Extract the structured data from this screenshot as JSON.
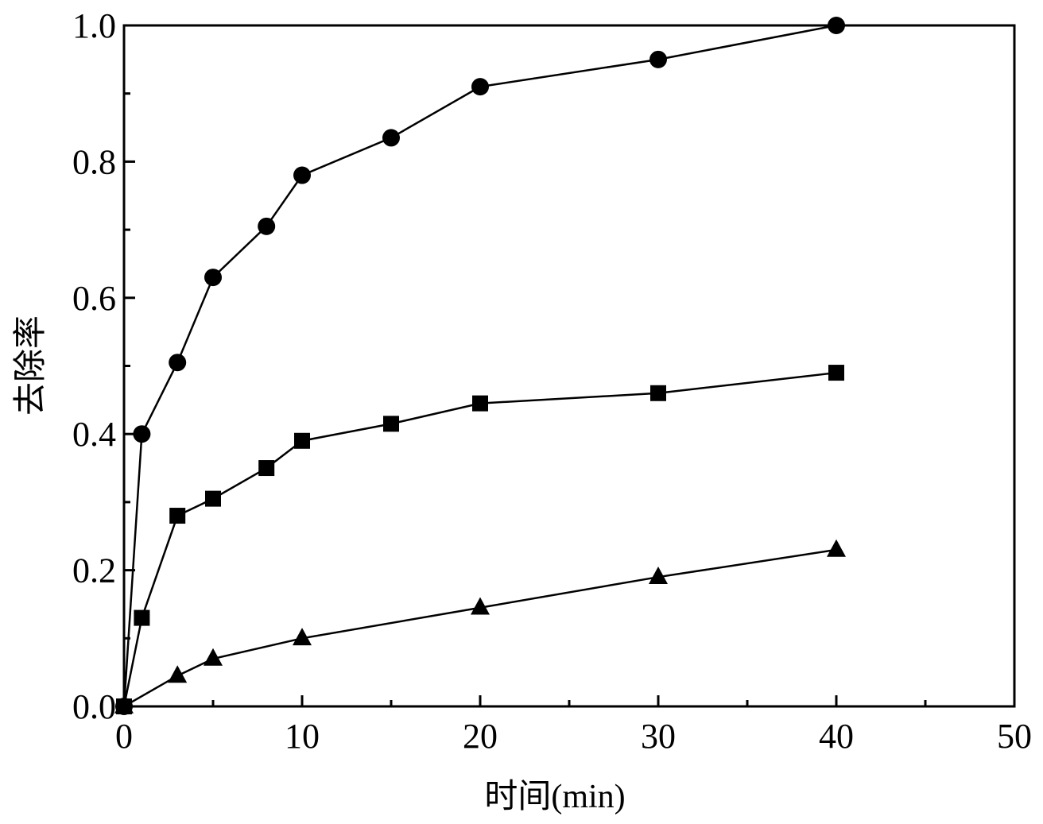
{
  "chart_data": {
    "type": "line",
    "xlabel": "时间(min)",
    "ylabel": "去除率",
    "xlim": [
      0,
      50
    ],
    "ylim": [
      0,
      1.0
    ],
    "x_ticks": [
      "0",
      "10",
      "20",
      "30",
      "40",
      "50"
    ],
    "y_ticks": [
      "0.0",
      "0.2",
      "0.4",
      "0.6",
      "0.8",
      "1.0"
    ],
    "grid": false,
    "series": [
      {
        "marker": "circle",
        "x": [
          0,
          1,
          3,
          5,
          8,
          10,
          15,
          20,
          30,
          40
        ],
        "y": [
          0.0,
          0.4,
          0.505,
          0.63,
          0.705,
          0.78,
          0.835,
          0.91,
          0.95,
          1.0
        ]
      },
      {
        "marker": "square",
        "x": [
          0,
          1,
          3,
          5,
          8,
          10,
          15,
          20,
          30,
          40
        ],
        "y": [
          0.0,
          0.13,
          0.28,
          0.305,
          0.35,
          0.39,
          0.415,
          0.445,
          0.46,
          0.49
        ]
      },
      {
        "marker": "triangle",
        "x": [
          0,
          3,
          5,
          10,
          20,
          30,
          40
        ],
        "y": [
          0.0,
          0.045,
          0.07,
          0.1,
          0.145,
          0.19,
          0.23
        ]
      }
    ],
    "color": "#000000"
  }
}
